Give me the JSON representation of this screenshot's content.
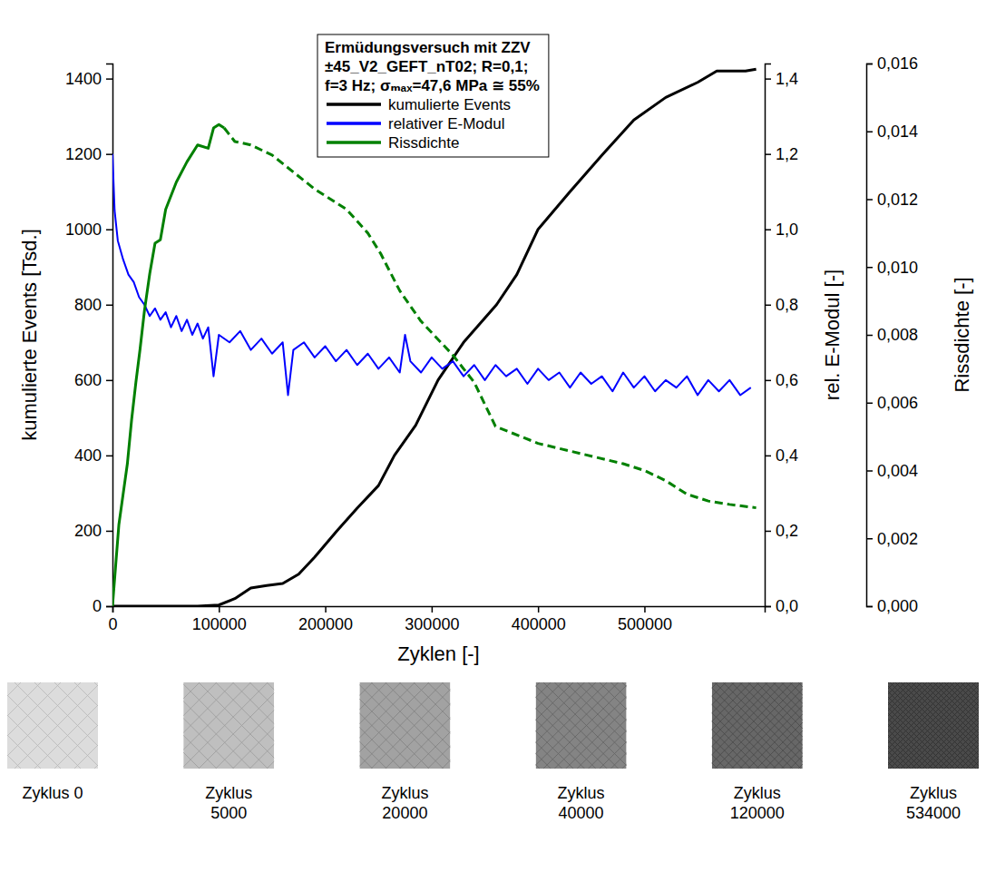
{
  "chart_data": {
    "type": "line",
    "title": [
      "Ermüdungsversuch mit ZZV",
      "±45_V2_GEFT_nT02; R=0,1;",
      "f=3 Hz; σₘₐₓ=47,6 MPa ≅ 55%"
    ],
    "x_label": "Zyklen [-]",
    "y_label": "kumulierte Events [Tsd.]",
    "y2_label": "rel. E-Modul [-]",
    "y3_label": "Rissdichte [-]",
    "xlim": [
      0,
      613000
    ],
    "xticks": [
      0,
      100000,
      200000,
      300000,
      400000,
      500000
    ],
    "ylim": [
      0,
      1440
    ],
    "yticks": [
      0,
      200,
      400,
      600,
      800,
      1000,
      1200,
      1400
    ],
    "y2lim": [
      0,
      1.44
    ],
    "y2ticks": [
      {
        "value": 0,
        "label": "0,0"
      },
      {
        "value": 0.2,
        "label": "0,2"
      },
      {
        "value": 0.4,
        "label": "0,4"
      },
      {
        "value": 0.6,
        "label": "0,6"
      },
      {
        "value": 0.8,
        "label": "0,8"
      },
      {
        "value": 1.0,
        "label": "1,0"
      },
      {
        "value": 1.2,
        "label": "1,2"
      },
      {
        "value": 1.4,
        "label": "1,4"
      }
    ],
    "y3lim": [
      0,
      0.016
    ],
    "y3ticks": [
      {
        "value": 0,
        "label": "0,000"
      },
      {
        "value": 0.002,
        "label": "0,002"
      },
      {
        "value": 0.004,
        "label": "0,004"
      },
      {
        "value": 0.006,
        "label": "0,006"
      },
      {
        "value": 0.008,
        "label": "0,008"
      },
      {
        "value": 0.01,
        "label": "0,010"
      },
      {
        "value": 0.012,
        "label": "0,012"
      },
      {
        "value": 0.014,
        "label": "0,014"
      },
      {
        "value": 0.016,
        "label": "0,016"
      }
    ],
    "grid": false,
    "legend": "top",
    "series": [
      {
        "name": "kumulierte Events",
        "color": "#000000",
        "axis": "y",
        "line_style": "solid",
        "x": [
          0,
          50000,
          80000,
          100000,
          115000,
          130000,
          145000,
          160000,
          175000,
          190000,
          211000,
          230000,
          250000,
          265000,
          285000,
          306000,
          330000,
          361000,
          380000,
          400000,
          430000,
          461000,
          490000,
          520000,
          550000,
          568000,
          580000,
          595000,
          605000
        ],
        "values": [
          0,
          0,
          0,
          3,
          20,
          48,
          55,
          60,
          85,
          130,
          200,
          260,
          320,
          400,
          480,
          600,
          700,
          800,
          880,
          1000,
          1100,
          1200,
          1290,
          1350,
          1390,
          1420,
          1420,
          1420,
          1425
        ]
      },
      {
        "name": "relativer E-Modul",
        "color": "#0000ff",
        "axis": "y2",
        "line_style": "solid",
        "x": [
          0,
          2000,
          5000,
          10000,
          15000,
          20000,
          25000,
          30000,
          35000,
          40000,
          45000,
          50000,
          55000,
          60000,
          65000,
          70000,
          75000,
          80000,
          85000,
          90000,
          95000,
          100000,
          110000,
          120000,
          130000,
          140000,
          150000,
          160000,
          165000,
          170000,
          180000,
          190000,
          200000,
          210000,
          220000,
          230000,
          240000,
          250000,
          260000,
          270000,
          275000,
          280000,
          290000,
          300000,
          310000,
          320000,
          330000,
          340000,
          350000,
          360000,
          370000,
          380000,
          390000,
          400000,
          410000,
          420000,
          430000,
          440000,
          450000,
          460000,
          470000,
          480000,
          490000,
          500000,
          510000,
          520000,
          530000,
          540000,
          550000,
          560000,
          570000,
          580000,
          590000,
          600000
        ],
        "values": [
          1.2,
          1.05,
          0.97,
          0.92,
          0.88,
          0.86,
          0.82,
          0.8,
          0.77,
          0.79,
          0.76,
          0.78,
          0.74,
          0.77,
          0.73,
          0.76,
          0.72,
          0.75,
          0.71,
          0.74,
          0.61,
          0.72,
          0.7,
          0.73,
          0.68,
          0.71,
          0.67,
          0.7,
          0.56,
          0.68,
          0.7,
          0.66,
          0.69,
          0.65,
          0.68,
          0.64,
          0.67,
          0.63,
          0.66,
          0.62,
          0.72,
          0.65,
          0.62,
          0.66,
          0.63,
          0.65,
          0.61,
          0.64,
          0.6,
          0.64,
          0.61,
          0.63,
          0.59,
          0.63,
          0.6,
          0.62,
          0.58,
          0.62,
          0.59,
          0.61,
          0.57,
          0.62,
          0.58,
          0.61,
          0.57,
          0.6,
          0.58,
          0.61,
          0.56,
          0.6,
          0.57,
          0.6,
          0.56,
          0.58
        ]
      },
      {
        "name": "Rissdichte",
        "color": "#008000",
        "axis": "y3",
        "line_style": "solid",
        "x": [
          0,
          3000,
          6000,
          10000,
          14000,
          18000,
          22000,
          26000,
          30000,
          35000,
          40000,
          45000,
          50000,
          60000,
          70000,
          80000,
          90000,
          95000,
          100000,
          105000
        ],
        "values": [
          0,
          0.0012,
          0.0024,
          0.0033,
          0.0042,
          0.0055,
          0.0066,
          0.0076,
          0.0087,
          0.0098,
          0.0107,
          0.0108,
          0.0117,
          0.0125,
          0.0131,
          0.0136,
          0.0135,
          0.0141,
          0.0142,
          0.0141
        ]
      },
      {
        "name": "Rissdichte",
        "color": "#008000",
        "axis": "y3",
        "line_style": "dashed",
        "x": [
          105000,
          115000,
          130000,
          150000,
          170000,
          190000,
          200000,
          220000,
          240000,
          252000,
          270000,
          290000,
          320000,
          340000,
          360000,
          400000,
          440000,
          480000,
          500000,
          520000,
          540000,
          560000,
          580000,
          605000
        ],
        "values": [
          0.0141,
          0.0137,
          0.0136,
          0.0133,
          0.0128,
          0.0123,
          0.0121,
          0.0117,
          0.011,
          0.0104,
          0.0093,
          0.0084,
          0.0074,
          0.0066,
          0.0053,
          0.0048,
          0.0045,
          0.0042,
          0.004,
          0.0037,
          0.0033,
          0.0031,
          0.003,
          0.0029
        ]
      }
    ],
    "photo_captions": [
      [
        "Zyklus 0"
      ],
      [
        "Zyklus",
        "5000"
      ],
      [
        "Zyklus",
        "20000"
      ],
      [
        "Zyklus",
        "40000"
      ],
      [
        "Zyklus",
        "120000"
      ],
      [
        "Zyklus",
        "534000"
      ]
    ]
  }
}
